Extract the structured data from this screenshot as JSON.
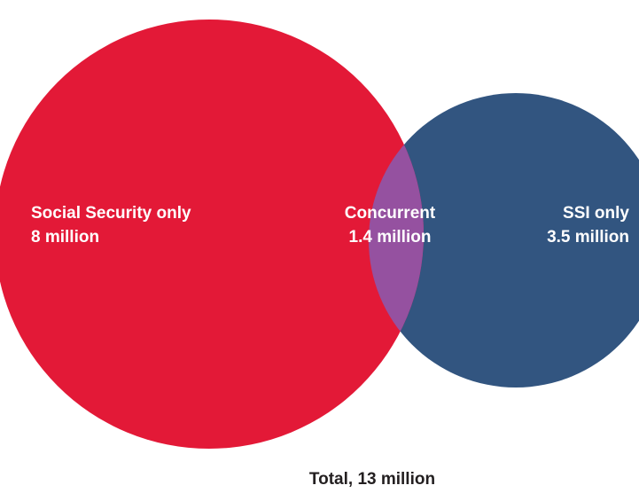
{
  "colors": {
    "social_security": "#e31937",
    "ssi": "#325580",
    "overlap": "#9551a0",
    "label_text": "#ffffff",
    "total_text": "#231f20"
  },
  "sets": {
    "social_security_only": {
      "label": "Social Security only",
      "value": "8 million"
    },
    "concurrent": {
      "label": "Concurrent",
      "value": "1.4 million"
    },
    "ssi_only": {
      "label": "SSI only",
      "value": "3.5 million"
    }
  },
  "total": "Total, 13 million"
}
